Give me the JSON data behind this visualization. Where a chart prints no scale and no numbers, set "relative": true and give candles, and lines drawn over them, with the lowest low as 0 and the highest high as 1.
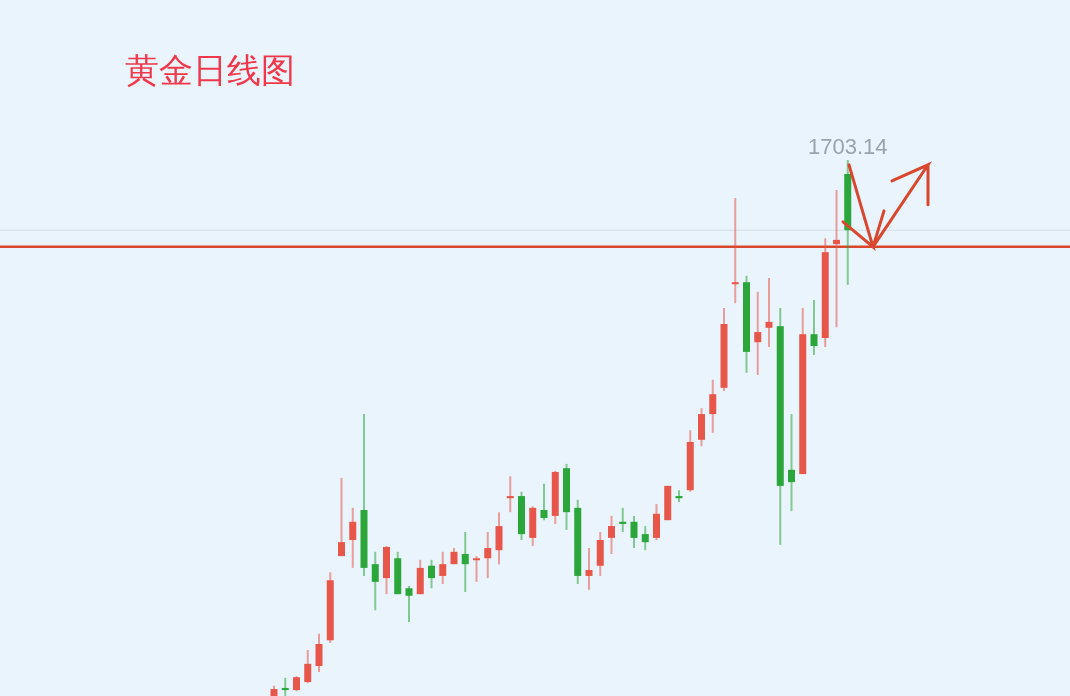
{
  "chart_data": {
    "type": "candlestick",
    "title": "黄金日线图",
    "relative": true,
    "categories": [
      null,
      null,
      null,
      null,
      null,
      null,
      null,
      null,
      null,
      null,
      null,
      null,
      null,
      null,
      null,
      null,
      null,
      null,
      null,
      null,
      null,
      null,
      null,
      null,
      null,
      null,
      null,
      null,
      null,
      null,
      null,
      null,
      null,
      null,
      null,
      null,
      null,
      null,
      null,
      null,
      null,
      null,
      null,
      null,
      null,
      null,
      null,
      null,
      null,
      null,
      null,
      null
    ],
    "ohlc": [
      [
        0,
        0.019,
        0,
        0.013
      ],
      [
        0.015,
        0.034,
        0,
        0.011
      ],
      [
        0.011,
        0.037,
        0.009,
        0.035
      ],
      [
        0.026,
        0.086,
        0.024,
        0.06
      ],
      [
        0.056,
        0.116,
        0.045,
        0.097
      ],
      [
        0.104,
        0.231,
        0.099,
        0.216
      ],
      [
        0.261,
        0.407,
        0.261,
        0.287
      ],
      [
        0.291,
        0.351,
        0.239,
        0.325
      ],
      [
        0.347,
        0.526,
        0.224,
        0.239
      ],
      [
        0.246,
        0.269,
        0.16,
        0.213
      ],
      [
        0.22,
        0.28,
        0.19,
        0.278
      ],
      [
        0.257,
        0.269,
        0.19,
        0.19
      ],
      [
        0.201,
        0.205,
        0.138,
        0.187
      ],
      [
        0.19,
        0.254,
        0.19,
        0.239
      ],
      [
        0.243,
        0.254,
        0.201,
        0.22
      ],
      [
        0.224,
        0.269,
        0.209,
        0.246
      ],
      [
        0.246,
        0.276,
        0.246,
        0.269
      ],
      [
        0.265,
        0.306,
        0.194,
        0.246
      ],
      [
        0.254,
        0.261,
        0.213,
        0.257
      ],
      [
        0.257,
        0.306,
        0.22,
        0.276
      ],
      [
        0.272,
        0.343,
        0.246,
        0.317
      ],
      [
        0.369,
        0.41,
        0.343,
        0.373
      ],
      [
        0.373,
        0.381,
        0.291,
        0.302
      ],
      [
        0.295,
        0.354,
        0.28,
        0.351
      ],
      [
        0.347,
        0.396,
        0.328,
        0.332
      ],
      [
        0.336,
        0.42,
        0.321,
        0.418
      ],
      [
        0.425,
        0.433,
        0.31,
        0.343
      ],
      [
        0.351,
        0.366,
        0.209,
        0.224
      ],
      [
        0.224,
        0.276,
        0.198,
        0.235
      ],
      [
        0.243,
        0.306,
        0.224,
        0.291
      ],
      [
        0.295,
        0.336,
        0.265,
        0.317
      ],
      [
        0.325,
        0.351,
        0.306,
        0.321
      ],
      [
        0.325,
        0.336,
        0.276,
        0.295
      ],
      [
        0.302,
        0.317,
        0.272,
        0.287
      ],
      [
        0.295,
        0.358,
        0.291,
        0.34
      ],
      [
        0.328,
        0.392,
        0.328,
        0.392
      ],
      [
        0.373,
        0.384,
        0.362,
        0.369
      ],
      [
        0.384,
        0.496,
        0.381,
        0.474
      ],
      [
        0.478,
        0.537,
        0.466,
        0.526
      ],
      [
        0.526,
        0.59,
        0.491,
        0.563
      ],
      [
        0.575,
        0.724,
        0.569,
        0.694
      ],
      [
        0.769,
        0.929,
        0.733,
        0.772
      ],
      [
        0.772,
        0.784,
        0.603,
        0.642
      ],
      [
        0.66,
        0.754,
        0.599,
        0.679
      ],
      [
        0.687,
        0.78,
        0.651,
        0.698
      ],
      [
        0.69,
        0.724,
        0.282,
        0.392
      ],
      [
        0.422,
        0.526,
        0.345,
        0.399
      ],
      [
        0.414,
        0.724,
        0.414,
        0.675
      ],
      [
        0.675,
        0.739,
        0.636,
        0.653
      ],
      [
        0.668,
        0.854,
        0.651,
        0.828
      ],
      [
        0.843,
        0.944,
        0.688,
        0.851
      ],
      [
        0.974,
        1,
        0.767,
        0.869
      ]
    ],
    "colors": [
      "#e8564a",
      "#2aa63a",
      "#e8564a",
      "#e8564a",
      "#e8564a",
      "#e8564a",
      "#e8564a",
      "#e8564a",
      "#2aa63a",
      "#2aa63a",
      "#e8564a",
      "#2aa63a",
      "#2aa63a",
      "#e8564a",
      "#2aa63a",
      "#e8564a",
      "#e8564a",
      "#2aa63a",
      "#e8564a",
      "#e8564a",
      "#e8564a",
      "#e8564a",
      "#2aa63a",
      "#e8564a",
      "#2aa63a",
      "#e8564a",
      "#2aa63a",
      "#2aa63a",
      "#e8564a",
      "#e8564a",
      "#e8564a",
      "#2aa63a",
      "#2aa63a",
      "#2aa63a",
      "#e8564a",
      "#e8564a",
      "#2aa63a",
      "#e8564a",
      "#e8564a",
      "#e8564a",
      "#e8564a",
      "#e8564a",
      "#2aa63a",
      "#e8564a",
      "#e8564a",
      "#2aa63a",
      "#2aa63a",
      "#e8564a",
      "#2aa63a",
      "#e8564a",
      "#e8564a",
      "#2aa63a"
    ],
    "annotations": [
      "1703.14"
    ],
    "ref_lines": [
      {
        "axis": "y",
        "value": 0.838,
        "color": "#d9472f"
      },
      {
        "axis": "y",
        "value": 0.869,
        "color": "#d3dbe3"
      }
    ]
  }
}
